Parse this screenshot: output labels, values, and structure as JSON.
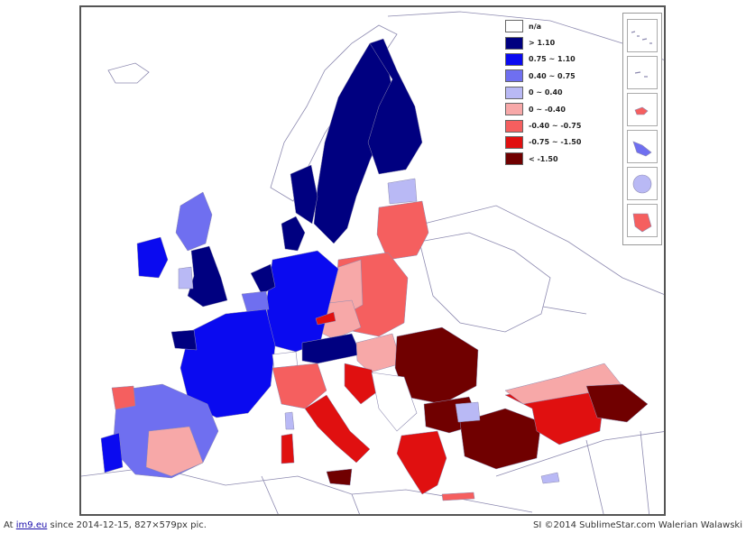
{
  "legend": {
    "items": [
      {
        "label": "n/a",
        "color": "#ffffff"
      },
      {
        "label": "> 1.10",
        "color": "#000080"
      },
      {
        "label": "0.75 ~ 1.10",
        "color": "#0a0af0"
      },
      {
        "label": "0.40 ~ 0.75",
        "color": "#6f6ff0"
      },
      {
        "label": "0 ~ 0.40",
        "color": "#b9b9f5"
      },
      {
        "label": "0 ~ -0.40",
        "color": "#f7a8a8"
      },
      {
        "label": "-0.40 ~ -0.75",
        "color": "#f55f5f"
      },
      {
        "label": "-0.75 ~ -1.50",
        "color": "#e01010"
      },
      {
        "label": "< -1.50",
        "color": "#700000"
      }
    ]
  },
  "footer": {
    "prefix": "At ",
    "site": "im9.eu",
    "suffix": " since 2014-12-15, 827×579px pic.",
    "credit": "SI ©2014 SublimeStar.com Walerian Walawski"
  },
  "colors": {
    "border": "#8d8ab0",
    "frame": "#555555"
  }
}
